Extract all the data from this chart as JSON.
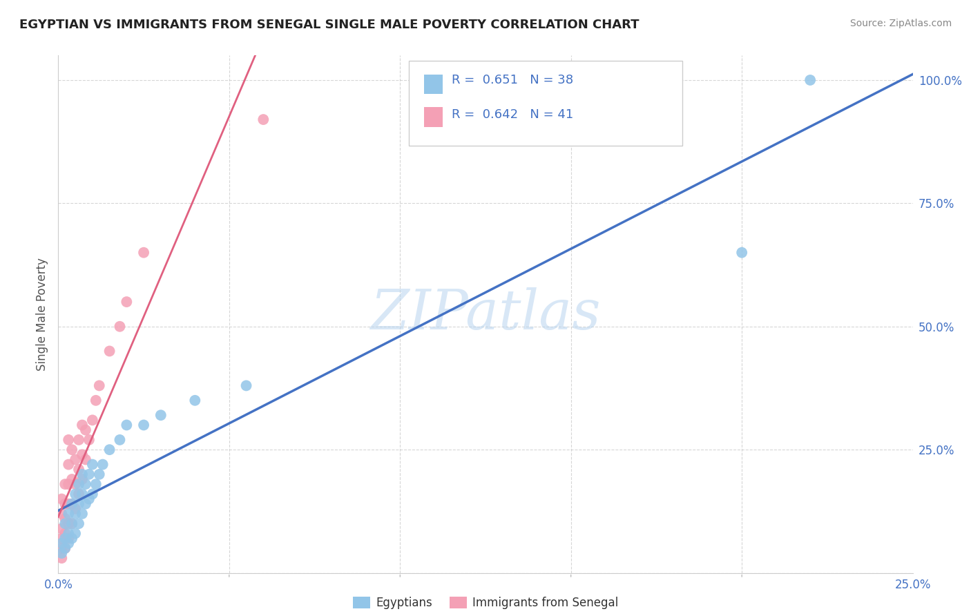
{
  "title": "EGYPTIAN VS IMMIGRANTS FROM SENEGAL SINGLE MALE POVERTY CORRELATION CHART",
  "source": "Source: ZipAtlas.com",
  "ylabel": "Single Male Poverty",
  "xlim": [
    0,
    0.25
  ],
  "ylim": [
    0,
    1.05
  ],
  "watermark": "ZIPatlas",
  "color_egyptian": "#92C5E8",
  "color_senegal": "#F4A0B5",
  "trendline_color_egyptian": "#4472C4",
  "trendline_color_senegal": "#E06080",
  "background_color": "#ffffff",
  "grid_color": "#cccccc",
  "egyptian_x": [
    0.001,
    0.001,
    0.002,
    0.002,
    0.002,
    0.003,
    0.003,
    0.003,
    0.004,
    0.004,
    0.004,
    0.005,
    0.005,
    0.005,
    0.006,
    0.006,
    0.006,
    0.007,
    0.007,
    0.007,
    0.008,
    0.008,
    0.009,
    0.009,
    0.01,
    0.01,
    0.011,
    0.012,
    0.013,
    0.015,
    0.018,
    0.02,
    0.025,
    0.03,
    0.04,
    0.055,
    0.2,
    0.22
  ],
  "egyptian_y": [
    0.04,
    0.06,
    0.05,
    0.07,
    0.1,
    0.06,
    0.08,
    0.12,
    0.07,
    0.1,
    0.14,
    0.08,
    0.12,
    0.16,
    0.1,
    0.14,
    0.18,
    0.12,
    0.16,
    0.2,
    0.14,
    0.18,
    0.15,
    0.2,
    0.16,
    0.22,
    0.18,
    0.2,
    0.22,
    0.25,
    0.27,
    0.3,
    0.3,
    0.32,
    0.35,
    0.38,
    0.65,
    1.0
  ],
  "senegal_x": [
    0.001,
    0.001,
    0.001,
    0.001,
    0.001,
    0.001,
    0.002,
    0.002,
    0.002,
    0.002,
    0.002,
    0.003,
    0.003,
    0.003,
    0.003,
    0.003,
    0.003,
    0.004,
    0.004,
    0.004,
    0.004,
    0.005,
    0.005,
    0.005,
    0.006,
    0.006,
    0.006,
    0.007,
    0.007,
    0.007,
    0.008,
    0.008,
    0.009,
    0.01,
    0.011,
    0.012,
    0.015,
    0.018,
    0.02,
    0.025,
    0.06
  ],
  "senegal_y": [
    0.03,
    0.05,
    0.07,
    0.09,
    0.12,
    0.15,
    0.05,
    0.08,
    0.11,
    0.14,
    0.18,
    0.07,
    0.1,
    0.14,
    0.18,
    0.22,
    0.27,
    0.1,
    0.14,
    0.19,
    0.25,
    0.13,
    0.18,
    0.23,
    0.16,
    0.21,
    0.27,
    0.19,
    0.24,
    0.3,
    0.23,
    0.29,
    0.27,
    0.31,
    0.35,
    0.38,
    0.45,
    0.5,
    0.55,
    0.65,
    0.92
  ],
  "ytick_values": [
    0.0,
    0.25,
    0.5,
    0.75,
    1.0
  ],
  "ytick_labels": [
    "",
    "25.0%",
    "50.0%",
    "75.0%",
    "100.0%"
  ],
  "tick_color": "#4472C4"
}
